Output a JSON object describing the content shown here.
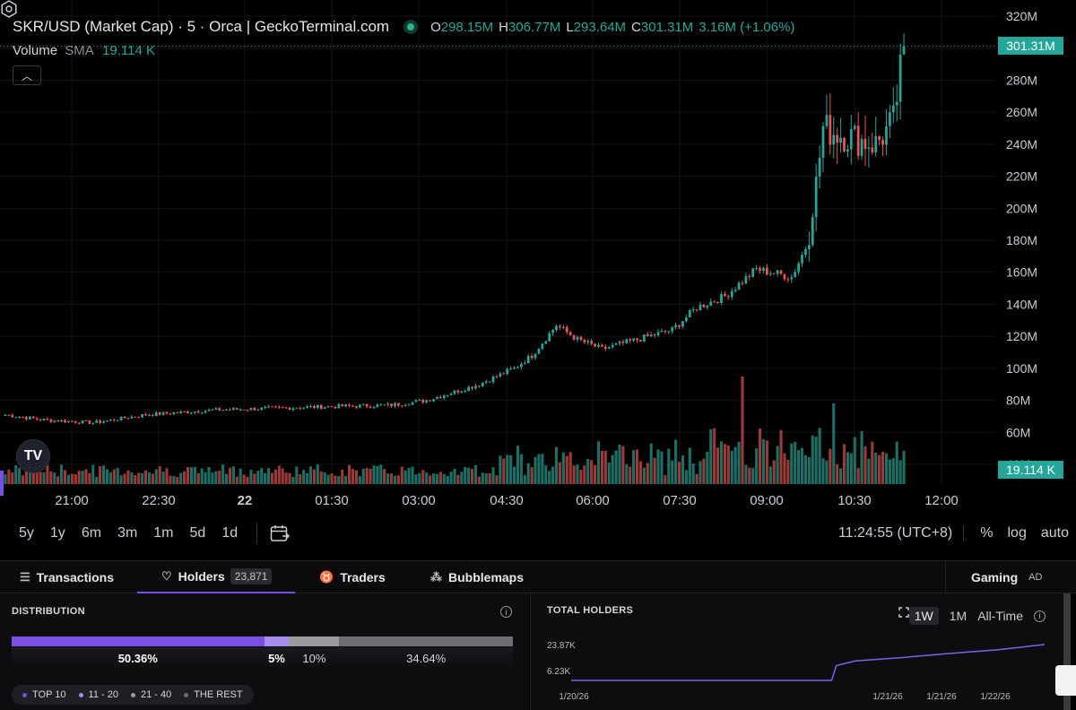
{
  "legend": {
    "title": "SKR/USD (Market Cap) · 5 · Orca | GeckoTerminal.com",
    "ohlc": [
      {
        "k": "O",
        "v": "298.15M"
      },
      {
        "k": "H",
        "v": "306.77M"
      },
      {
        "k": "L",
        "v": "293.64M"
      },
      {
        "k": "C",
        "v": "301.31M"
      }
    ],
    "change": "3.16M (+1.06%)",
    "volume_label": "Volume",
    "sma_label": "SMA",
    "volume_value": "19.114 K",
    "collapse_icon": "chevron-up-icon"
  },
  "price_axis": [
    "320M",
    "300M",
    "280M",
    "260M",
    "240M",
    "220M",
    "200M",
    "180M",
    "160M",
    "140M",
    "120M",
    "100M",
    "80M",
    "60M",
    "40M"
  ],
  "time_axis": [
    {
      "t": "21:00",
      "bold": false
    },
    {
      "t": "22:30",
      "bold": false
    },
    {
      "t": "22",
      "bold": true
    },
    {
      "t": "01:30",
      "bold": false
    },
    {
      "t": "03:00",
      "bold": false
    },
    {
      "t": "04:30",
      "bold": false
    },
    {
      "t": "06:00",
      "bold": false
    },
    {
      "t": "07:30",
      "bold": false
    },
    {
      "t": "09:00",
      "bold": false
    },
    {
      "t": "10:30",
      "bold": false
    },
    {
      "t": "12:00",
      "bold": false
    }
  ],
  "price_tag": "301.31M",
  "volume_tag": "19.114 K",
  "tv_logo": "TV",
  "colors": {
    "up": "#26a69a",
    "down": "#ef5350",
    "accent": "#7b4ee4"
  },
  "chart_data": {
    "type": "candlestick",
    "ylim": [
      40,
      320
    ],
    "unit": "M",
    "anchors": [
      [
        0,
        71
      ],
      [
        10,
        68
      ],
      [
        25,
        66
      ],
      [
        40,
        71
      ],
      [
        60,
        74
      ],
      [
        75,
        75
      ],
      [
        90,
        76
      ],
      [
        110,
        77
      ],
      [
        120,
        80
      ],
      [
        135,
        90
      ],
      [
        145,
        100
      ],
      [
        150,
        108
      ],
      [
        157,
        127
      ],
      [
        163,
        118
      ],
      [
        170,
        112
      ],
      [
        180,
        118
      ],
      [
        190,
        124
      ],
      [
        197,
        138
      ],
      [
        205,
        145
      ],
      [
        214,
        162
      ],
      [
        224,
        157
      ],
      [
        229,
        180
      ],
      [
        233,
        250
      ],
      [
        240,
        245
      ],
      [
        248,
        240
      ],
      [
        253,
        254
      ],
      [
        256,
        300
      ]
    ],
    "volume_spikes": [
      [
        210,
        100
      ],
      [
        236,
        70
      ]
    ]
  },
  "toolbar": {
    "ranges": [
      "5y",
      "1y",
      "6m",
      "3m",
      "1m",
      "5d",
      "1d"
    ],
    "time": "11:24:55 (UTC+8)",
    "options": [
      "%",
      "log",
      "auto"
    ]
  },
  "tabs": [
    {
      "label": "Transactions",
      "icon": "list-icon",
      "glyph": "☰",
      "active": false
    },
    {
      "label": "Holders",
      "icon": "heart-icon",
      "glyph": "♡",
      "badge": "23,871",
      "active": true
    },
    {
      "label": "Traders",
      "icon": "trophy-icon",
      "glyph": "♉",
      "active": false
    },
    {
      "label": "Bubblemaps",
      "icon": "bubbles-icon",
      "glyph": "⁂",
      "active": false
    }
  ],
  "gaming": {
    "label": "Gaming",
    "ad": "AD"
  },
  "distribution": {
    "title": "DISTRIBUTION",
    "segments": [
      {
        "label": "50.36%",
        "value": 50.36,
        "color": "#7b4ee4",
        "bold": true
      },
      {
        "label": "5%",
        "value": 5,
        "color": "#a58cf0",
        "bold": true
      },
      {
        "label": "10%",
        "value": 10,
        "color": "#9a9aa0",
        "bold": false
      },
      {
        "label": "34.64%",
        "value": 34.64,
        "color": "#6e6e74",
        "bold": false
      }
    ],
    "legend": [
      {
        "label": "TOP 10",
        "color": "#7b4ee4"
      },
      {
        "label": "11 - 20",
        "color": "#a58cf0"
      },
      {
        "label": "21 - 40",
        "color": "#9a9aa0"
      },
      {
        "label": "THE REST",
        "color": "#6e6e74"
      }
    ]
  },
  "total_holders": {
    "title": "TOTAL HOLDERS",
    "ranges": [
      "1W",
      "1M",
      "All-Time"
    ],
    "selected": "1W",
    "y_labels": [
      "23.87K",
      "6.23K"
    ],
    "x_labels": [
      "1/20/26",
      "1/21/26",
      "1/21/26",
      "1/22/26"
    ],
    "chart_data": {
      "type": "line",
      "points": [
        [
          0,
          6.23
        ],
        [
          0.55,
          6.23
        ],
        [
          0.56,
          13.5
        ],
        [
          0.6,
          15.8
        ],
        [
          0.7,
          17.5
        ],
        [
          0.8,
          19.5
        ],
        [
          0.9,
          21.3
        ],
        [
          1,
          23.87
        ]
      ]
    }
  }
}
